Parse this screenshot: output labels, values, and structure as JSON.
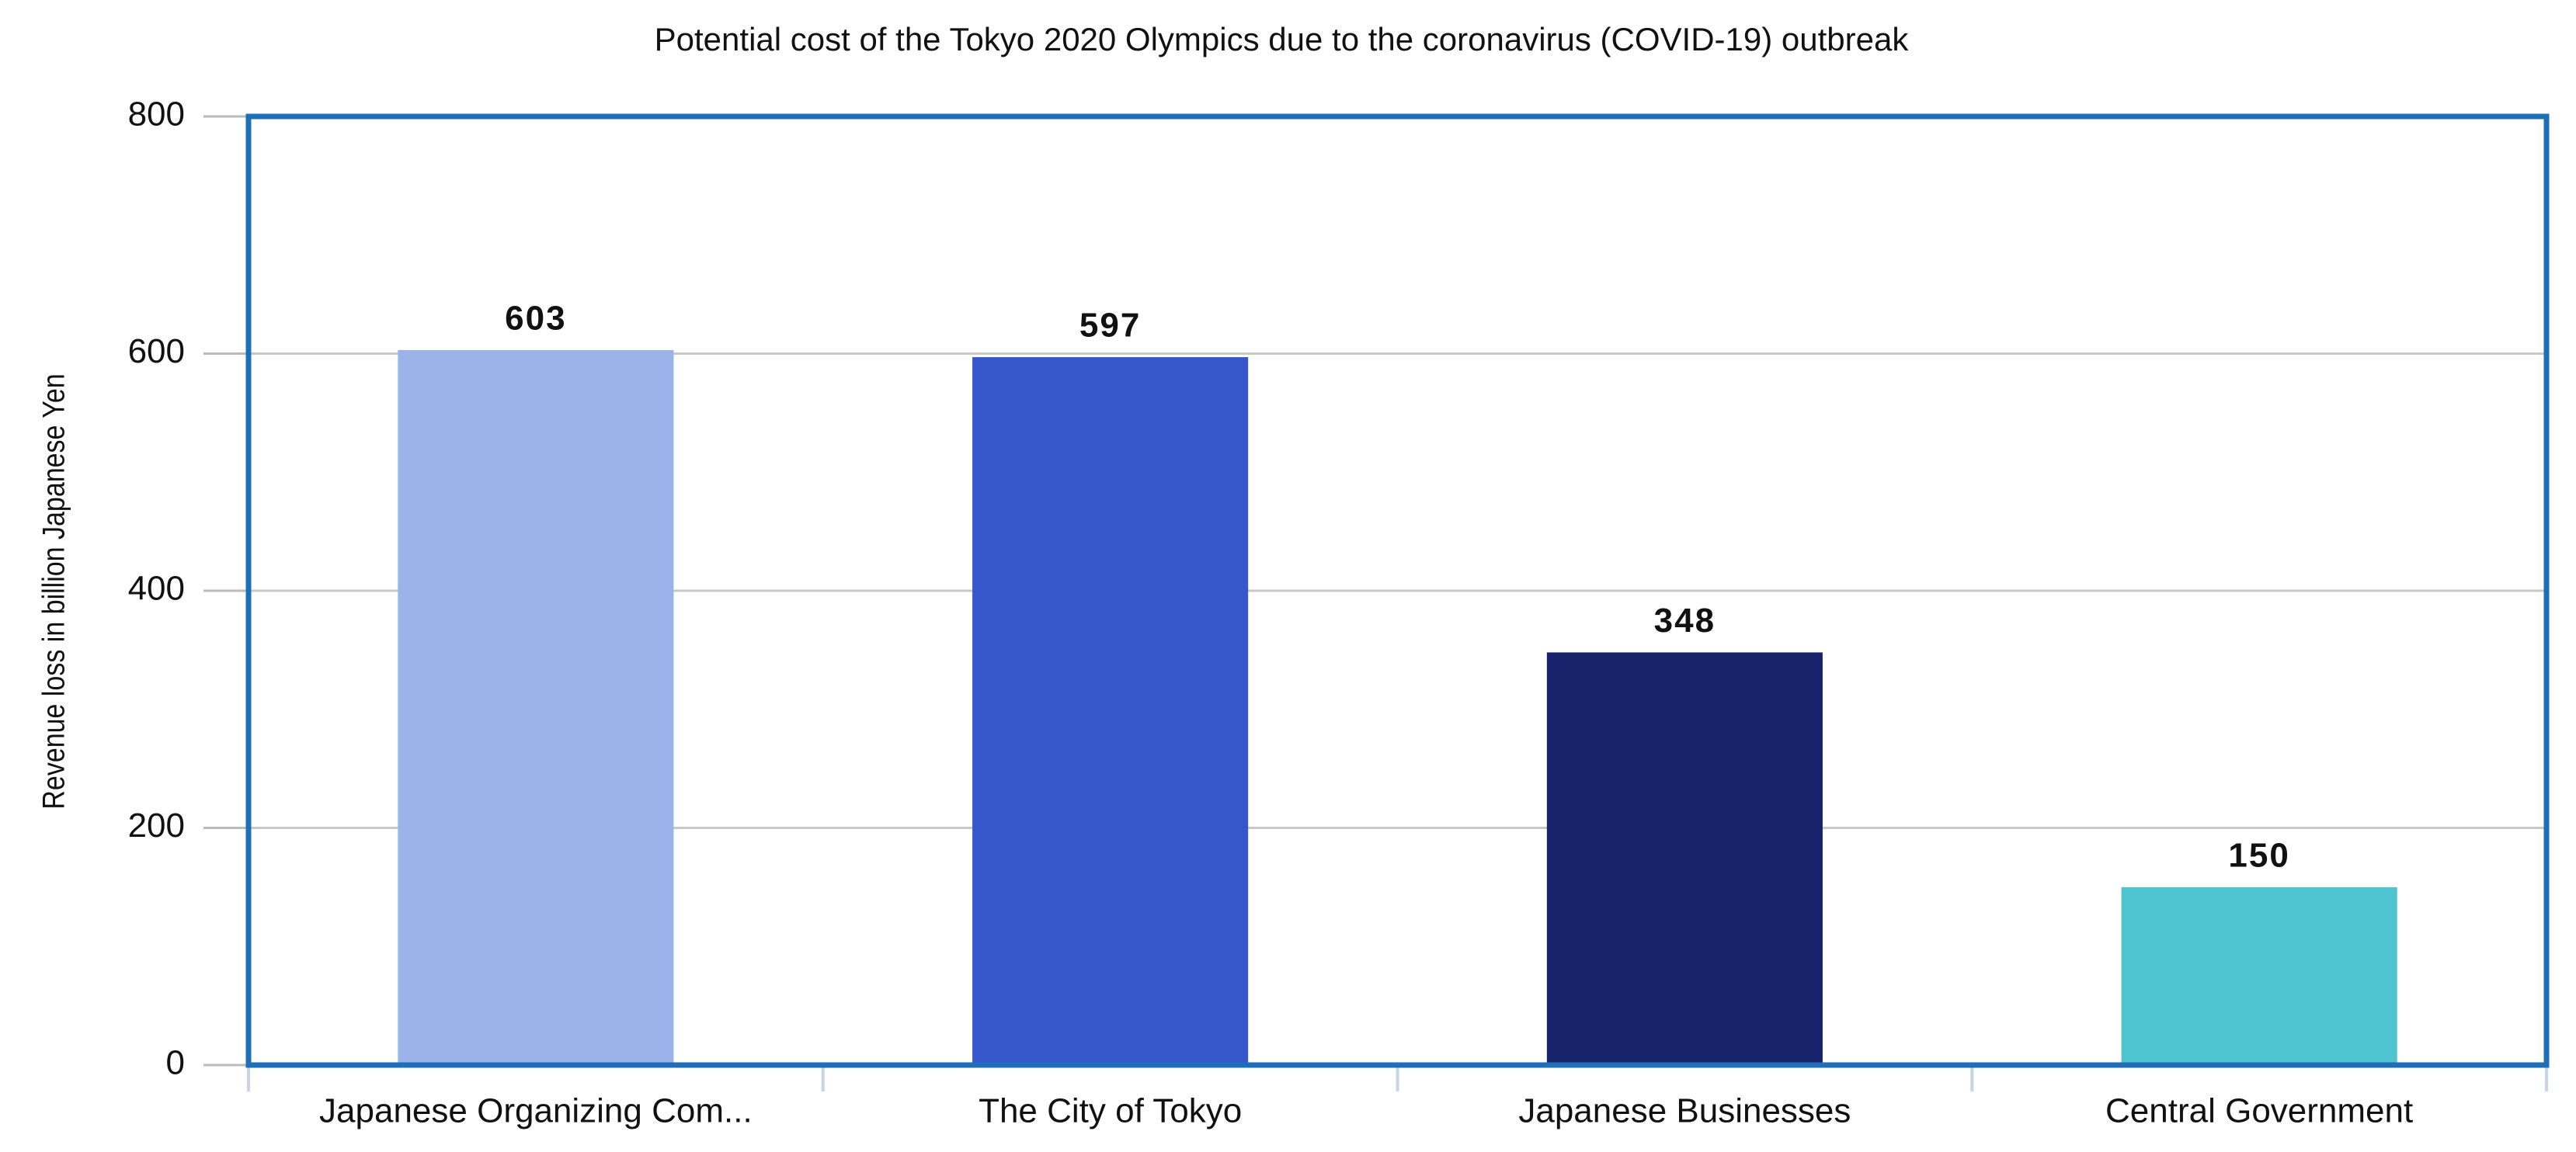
{
  "chart_data": {
    "type": "bar",
    "title": "Potential cost of the Tokyo 2020 Olympics due to the coronavirus (COVID-19) outbreak",
    "y_label": "Revenue loss in billion Japanese Yen",
    "categories": [
      "Japanese Organizing Com...",
      "The City of Tokyo",
      "Japanese Businesses",
      "Central Government"
    ],
    "values": [
      603,
      597,
      348,
      150
    ],
    "colors": [
      "#9bb3e8",
      "#3656cc",
      "#16226a",
      "#4dc4d0"
    ],
    "ylim": [
      0,
      800
    ],
    "yticks": [
      0,
      200,
      400,
      600,
      800
    ],
    "grid": true
  }
}
